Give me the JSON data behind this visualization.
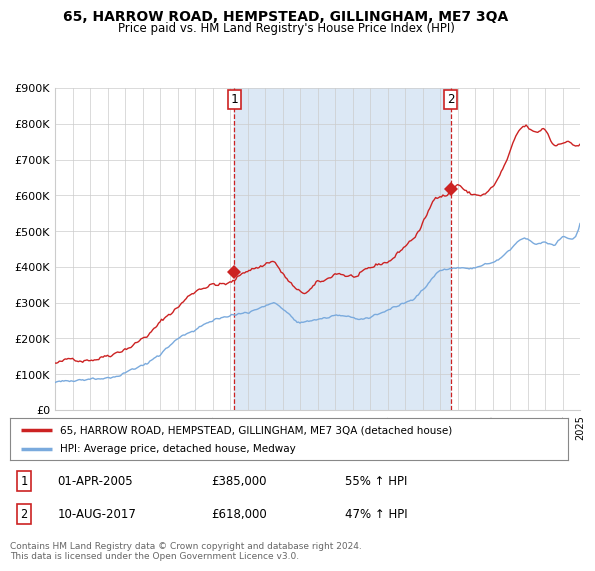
{
  "title": "65, HARROW ROAD, HEMPSTEAD, GILLINGHAM, ME7 3QA",
  "subtitle": "Price paid vs. HM Land Registry's House Price Index (HPI)",
  "ylim": [
    0,
    900000
  ],
  "yticks": [
    0,
    100000,
    200000,
    300000,
    400000,
    500000,
    600000,
    700000,
    800000,
    900000
  ],
  "ytick_labels": [
    "£0",
    "£100K",
    "£200K",
    "£300K",
    "£400K",
    "£500K",
    "£600K",
    "£700K",
    "£800K",
    "£900K"
  ],
  "background_color": "#ffffff",
  "grid_color": "#cccccc",
  "plot_bg_color": "#f0f4fa",
  "red_line_color": "#cc2222",
  "blue_line_color": "#7aaadd",
  "shade_color": "#dce8f5",
  "marker1_x": 2005.25,
  "marker1_value": 385000,
  "marker1_label": "1",
  "marker1_date_str": "01-APR-2005",
  "marker1_price_str": "£385,000",
  "marker1_hpi_str": "55% ↑ HPI",
  "marker2_x": 2017.6,
  "marker2_value": 618000,
  "marker2_label": "2",
  "marker2_date_str": "10-AUG-2017",
  "marker2_price_str": "£618,000",
  "marker2_hpi_str": "47% ↑ HPI",
  "legend_red_label": "65, HARROW ROAD, HEMPSTEAD, GILLINGHAM, ME7 3QA (detached house)",
  "legend_blue_label": "HPI: Average price, detached house, Medway",
  "footer_text": "Contains HM Land Registry data © Crown copyright and database right 2024.\nThis data is licensed under the Open Government Licence v3.0.",
  "xlim_min": 1995,
  "xlim_max": 2025
}
